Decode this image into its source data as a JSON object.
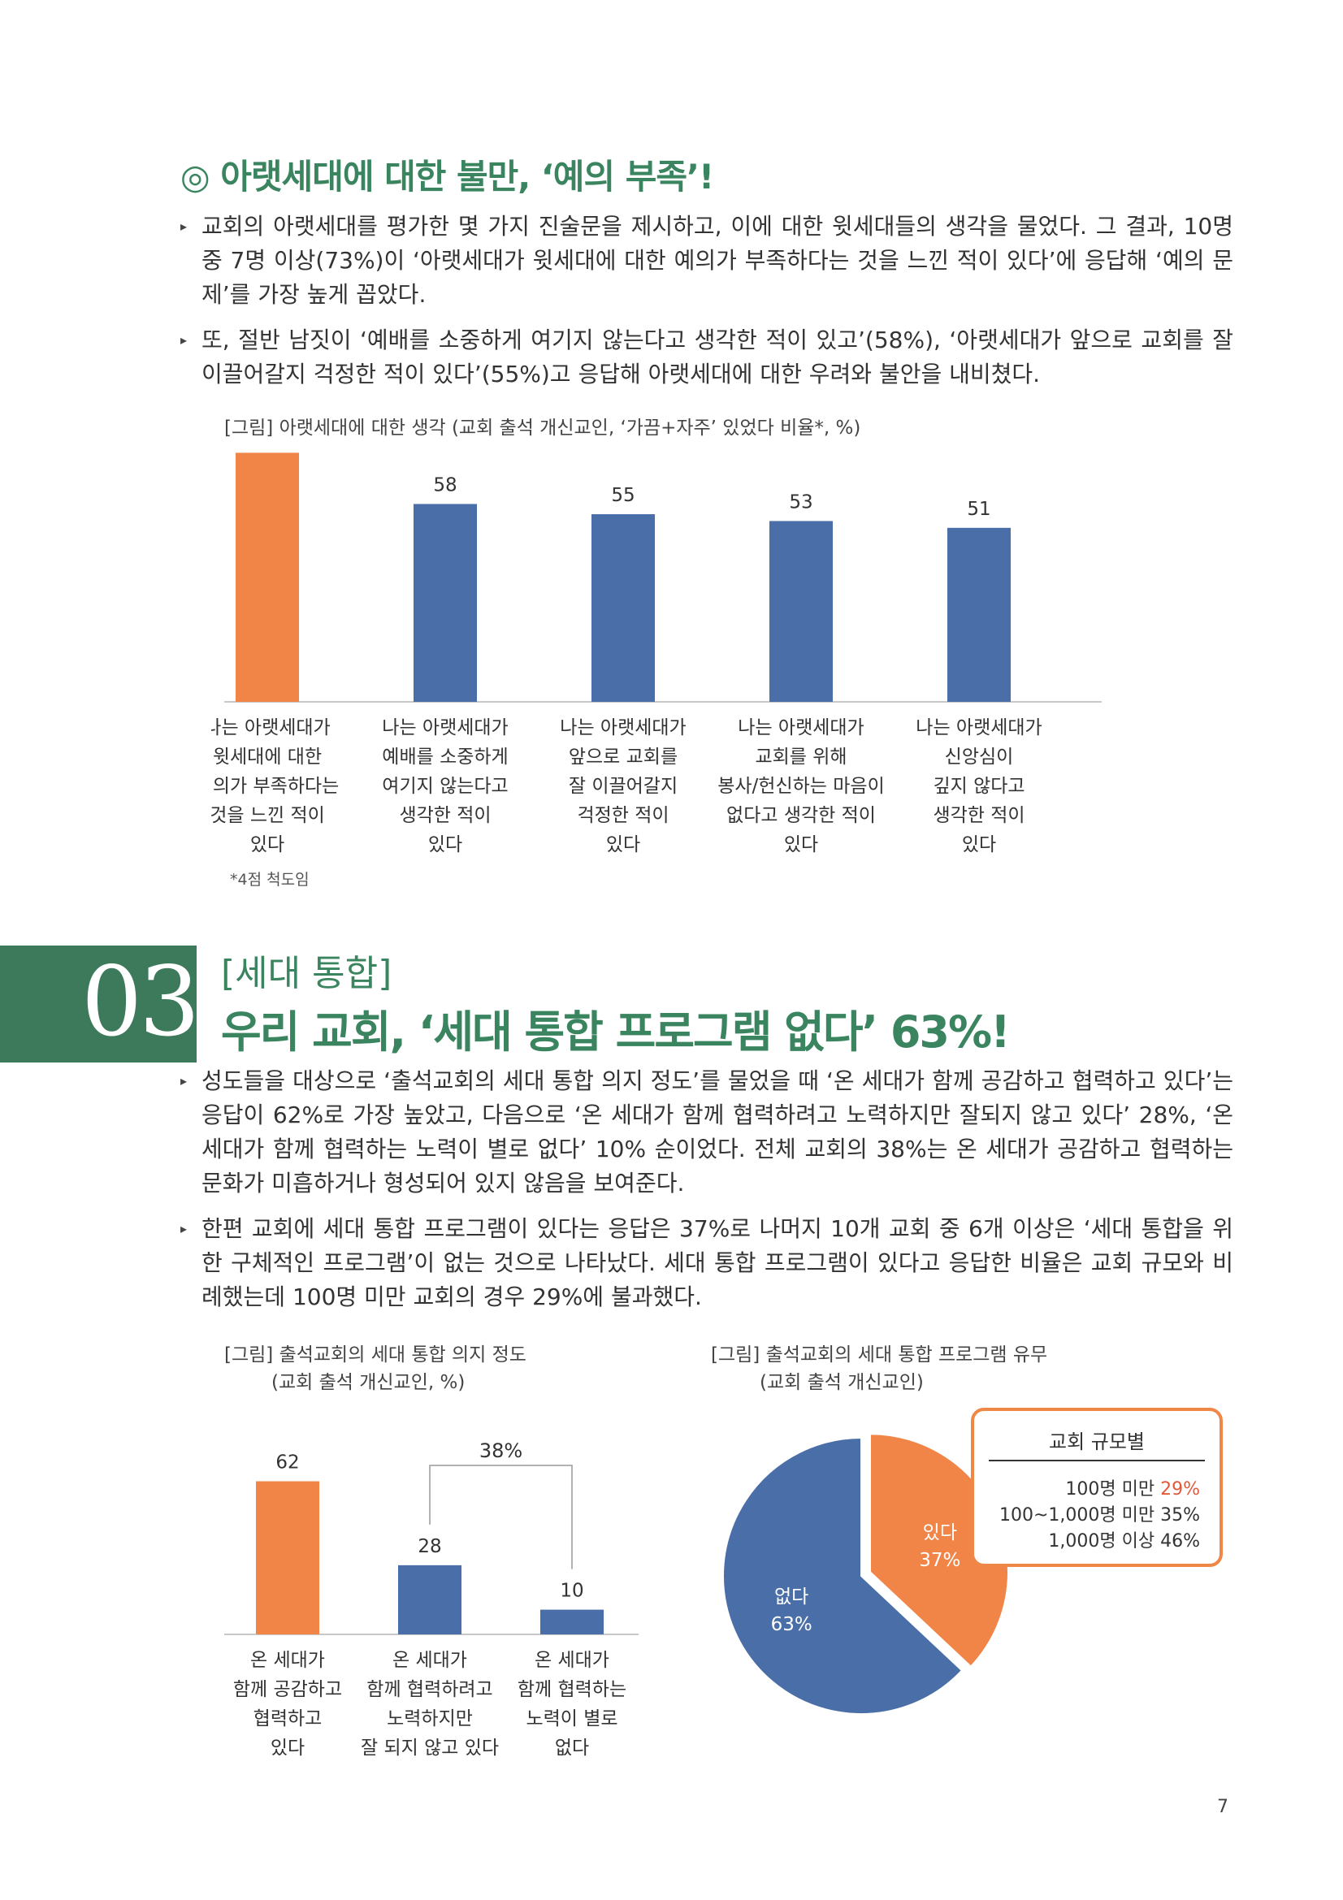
{
  "section1": {
    "title": "◎ 아랫세대에 대한 불만, ‘예의 부족’!",
    "bullets": [
      "교회의 아랫세대를 평가한 몇 가지 진술문을 제시하고, 이에 대한 윗세대들의 생각을 물었다. 그 결과, 10명 중 7명 이상(73%)이 ‘아랫세대가 윗세대에 대한 예의가 부족하다는 것을 느낀 적이 있다’에 응답해 ‘예의 문제’를 가장 높게 꼽았다.",
      "또, 절반 남짓이 ‘예배를 소중하게 여기지 않는다고 생각한 적이 있고’(58%), ‘아랫세대가 앞으로 교회를 잘 이끌어갈지 걱정한 적이 있다’(55%)고 응답해 아랫세대에 대한 우려와 불안을 내비쳤다."
    ],
    "chart_caption": "[그림] 아랫세대에 대한 생각 (교회 출석 개신교인, ‘가끔+자주’ 있었다 비율*, %)",
    "footnote": "*4점 척도임"
  },
  "section3": {
    "number": "03",
    "tag": "[세대 통합]",
    "headline": "우리 교회, ‘세대 통합 프로그램 없다’ 63%!",
    "bullets": [
      "성도들을 대상으로 ‘출석교회의 세대 통합 의지 정도’를 물었을 때 ‘온 세대가 함께 공감하고 협력하고 있다’는 응답이 62%로 가장 높았고, 다음으로 ‘온 세대가 함께 협력하려고 노력하지만 잘되지 않고 있다’ 28%, ‘온 세대가 함께 협력하는 노력이 별로 없다’ 10% 순이었다. 전체 교회의 38%는 온 세대가 공감하고 협력하는 문화가 미흡하거나 형성되어 있지 않음을 보여준다.",
      "한편 교회에 세대 통합 프로그램이 있다는 응답은 37%로 나머지 10개 교회 중 6개 이상은 ‘세대 통합을 위한 구체적인 프로그램’이 없는 것으로 나타났다. 세대 통합 프로그램이 있다고 응답한 비율은 교회 규모와 비례했는데 100명 미만 교회의 경우 29%에 불과했다."
    ],
    "chart2_caption": [
      "[그림] 출석교회의 세대 통합 의지 정도",
      "(교회 출석 개신교인, %)"
    ],
    "chart3_caption": [
      "[그림] 출석교회의 세대 통합 프로그램 유무",
      "(교회 출석 개신교인)"
    ],
    "legend": {
      "title": "교회 규모별",
      "rows": [
        {
          "label": "100명 미만",
          "value": "29%"
        },
        {
          "label": "100~1,000명 미만",
          "value": "35%"
        },
        {
          "label": "1,000명 이상",
          "value": "46%"
        }
      ]
    }
  },
  "page_number": "7",
  "colors": {
    "green": "#3a8560",
    "orange": "#f08547",
    "blue": "#4a6fa8"
  },
  "chart_data": [
    {
      "type": "bar",
      "categories": [
        [
          "나는 아랫세대가",
          "윗세대에 대한",
          "예의가 부족하다는",
          "것을 느낀 적이",
          "있다"
        ],
        [
          "나는 아랫세대가",
          "예배를 소중하게",
          "여기지 않는다고",
          "생각한 적이",
          "있다"
        ],
        [
          "나는 아랫세대가",
          "앞으로 교회를",
          "잘 이끌어갈지",
          "걱정한 적이",
          "있다"
        ],
        [
          "나는 아랫세대가",
          "교회를 위해",
          "봉사/헌신하는 마음이",
          "없다고 생각한 적이",
          "있다"
        ],
        [
          "나는 아랫세대가",
          "신앙심이",
          "깊지 않다고",
          "생각한 적이",
          "있다"
        ]
      ],
      "values": [
        73,
        58,
        55,
        53,
        51
      ],
      "ylim": [
        0,
        80
      ],
      "highlight_index": 0
    },
    {
      "type": "bar",
      "categories": [
        [
          "온 세대가",
          "함께 공감하고",
          "협력하고",
          "있다"
        ],
        [
          "온 세대가",
          "함께 협력하려고",
          "노력하지만",
          "잘 되지 않고 있다"
        ],
        [
          "온 세대가",
          "함께 협력하는",
          "노력이 별로",
          "없다"
        ]
      ],
      "values": [
        62,
        28,
        10
      ],
      "ylim": [
        0,
        70
      ],
      "highlight_index": 0,
      "bracket_label": "38%"
    },
    {
      "type": "pie",
      "slices": [
        {
          "label": "있다",
          "value": 37
        },
        {
          "label": "없다",
          "value": 63
        }
      ]
    }
  ]
}
